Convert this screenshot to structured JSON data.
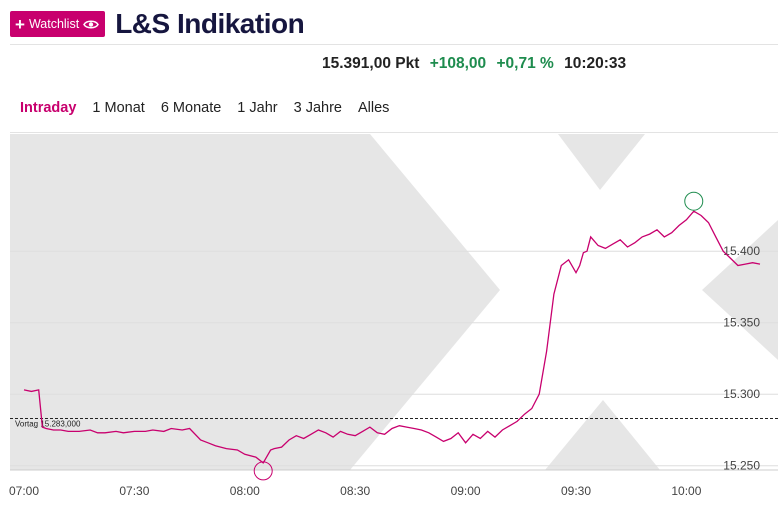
{
  "header": {
    "watchlist_label": "Watchlist",
    "title": "L&S Indikation"
  },
  "quote": {
    "price": "15.391,00 Pkt",
    "change_abs": "+108,00",
    "change_pct": "+0,71 %",
    "time": "10:20:33"
  },
  "tabs": [
    {
      "label": "Intraday",
      "active": true
    },
    {
      "label": "1 Monat",
      "active": false
    },
    {
      "label": "6 Monate",
      "active": false
    },
    {
      "label": "1 Jahr",
      "active": false
    },
    {
      "label": "3 Jahre",
      "active": false
    },
    {
      "label": "Alles",
      "active": false
    }
  ],
  "colors": {
    "accent": "#c8006e",
    "positive": "#1e8c4e",
    "title": "#16163f",
    "shade": "#e6e6e6"
  },
  "chart_data": {
    "type": "line",
    "title": "",
    "xlabel": "",
    "ylabel": "",
    "x_ticks": [
      "07:00",
      "07:30",
      "08:00",
      "08:30",
      "09:00",
      "09:30",
      "10:00"
    ],
    "y_ticks": [
      "15.250",
      "15.300",
      "15.350",
      "15.400"
    ],
    "y_tick_values": [
      15250,
      15300,
      15350,
      15400
    ],
    "ylim": [
      15247,
      15482
    ],
    "xlim": [
      "07:00",
      "10:20"
    ],
    "previous_close": {
      "label": "Vortag 15.283,000",
      "value": 15283
    },
    "grid": true,
    "series": [
      {
        "color": "#c8006e",
        "x": [
          "07:00",
          "07:02",
          "07:04",
          "07:05",
          "07:06",
          "07:08",
          "07:10",
          "07:12",
          "07:15",
          "07:18",
          "07:20",
          "07:22",
          "07:25",
          "07:27",
          "07:30",
          "07:33",
          "07:35",
          "07:38",
          "07:40",
          "07:43",
          "07:45",
          "07:48",
          "07:50",
          "07:52",
          "07:55",
          "07:58",
          "08:00",
          "08:03",
          "08:05",
          "08:07",
          "08:08",
          "08:10",
          "08:12",
          "08:14",
          "08:16",
          "08:18",
          "08:20",
          "08:22",
          "08:24",
          "08:26",
          "08:28",
          "08:30",
          "08:32",
          "08:34",
          "08:36",
          "08:38",
          "08:40",
          "08:42",
          "08:44",
          "08:46",
          "08:48",
          "08:50",
          "08:52",
          "08:54",
          "08:56",
          "08:58",
          "09:00",
          "09:02",
          "09:04",
          "09:06",
          "09:08",
          "09:10",
          "09:12",
          "09:14",
          "09:16",
          "09:18",
          "09:20",
          "09:22",
          "09:24",
          "09:26",
          "09:28",
          "09:30",
          "09:31",
          "09:32",
          "09:33",
          "09:34",
          "09:36",
          "09:38",
          "09:40",
          "09:42",
          "09:44",
          "09:46",
          "09:48",
          "09:50",
          "09:52",
          "09:54",
          "09:56",
          "09:58",
          "10:00",
          "10:02",
          "10:04",
          "10:06",
          "10:08",
          "10:10",
          "10:12",
          "10:14",
          "10:16",
          "10:18",
          "10:20"
        ],
        "y": [
          15303,
          15302,
          15303,
          15277,
          15276,
          15275,
          15275,
          15274,
          15274,
          15275,
          15273,
          15273,
          15274,
          15273,
          15274,
          15274,
          15275,
          15274,
          15276,
          15275,
          15276,
          15268,
          15266,
          15264,
          15262,
          15261,
          15258,
          15256,
          15252,
          15261,
          15262,
          15263,
          15268,
          15271,
          15269,
          15272,
          15275,
          15273,
          15270,
          15274,
          15272,
          15271,
          15274,
          15277,
          15273,
          15272,
          15276,
          15278,
          15277,
          15276,
          15275,
          15273,
          15270,
          15267,
          15269,
          15273,
          15266,
          15272,
          15269,
          15274,
          15270,
          15275,
          15278,
          15281,
          15286,
          15290,
          15300,
          15330,
          15370,
          15390,
          15394,
          15385,
          15390,
          15399,
          15400,
          15410,
          15404,
          15402,
          15405,
          15408,
          15403,
          15406,
          15410,
          15412,
          15415,
          15410,
          15413,
          15418,
          15422,
          15428,
          15425,
          15420,
          15410,
          15400,
          15395,
          15390,
          15391,
          15392,
          15391
        ]
      }
    ]
  }
}
